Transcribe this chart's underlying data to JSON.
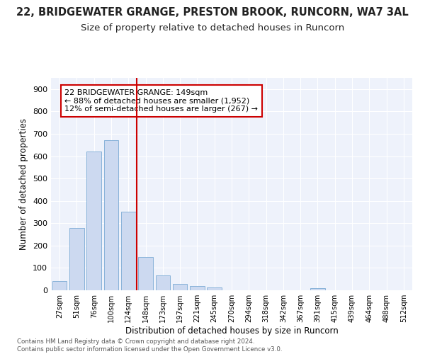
{
  "title1": "22, BRIDGEWATER GRANGE, PRESTON BROOK, RUNCORN, WA7 3AL",
  "title2": "Size of property relative to detached houses in Runcorn",
  "xlabel": "Distribution of detached houses by size in Runcorn",
  "ylabel": "Number of detached properties",
  "categories": [
    "27sqm",
    "51sqm",
    "76sqm",
    "100sqm",
    "124sqm",
    "148sqm",
    "173sqm",
    "197sqm",
    "221sqm",
    "245sqm",
    "270sqm",
    "294sqm",
    "318sqm",
    "342sqm",
    "367sqm",
    "391sqm",
    "415sqm",
    "439sqm",
    "464sqm",
    "488sqm",
    "512sqm"
  ],
  "values": [
    42,
    280,
    622,
    670,
    350,
    148,
    65,
    30,
    18,
    12,
    0,
    0,
    0,
    0,
    0,
    9,
    0,
    0,
    0,
    0,
    0
  ],
  "bar_color": "#ccd9f0",
  "bar_edge_color": "#7baad4",
  "vline_x": 4.5,
  "vline_color": "#cc0000",
  "annotation_text": "22 BRIDGEWATER GRANGE: 149sqm\n← 88% of detached houses are smaller (1,952)\n12% of semi-detached houses are larger (267) →",
  "annotation_box_color": "#ffffff",
  "annotation_box_edge": "#cc0000",
  "ylim": [
    0,
    950
  ],
  "yticks": [
    0,
    100,
    200,
    300,
    400,
    500,
    600,
    700,
    800,
    900
  ],
  "bg_color": "#eef2fb",
  "footer_text": "Contains HM Land Registry data © Crown copyright and database right 2024.\nContains public sector information licensed under the Open Government Licence v3.0.",
  "title1_fontsize": 10.5,
  "title2_fontsize": 9.5
}
